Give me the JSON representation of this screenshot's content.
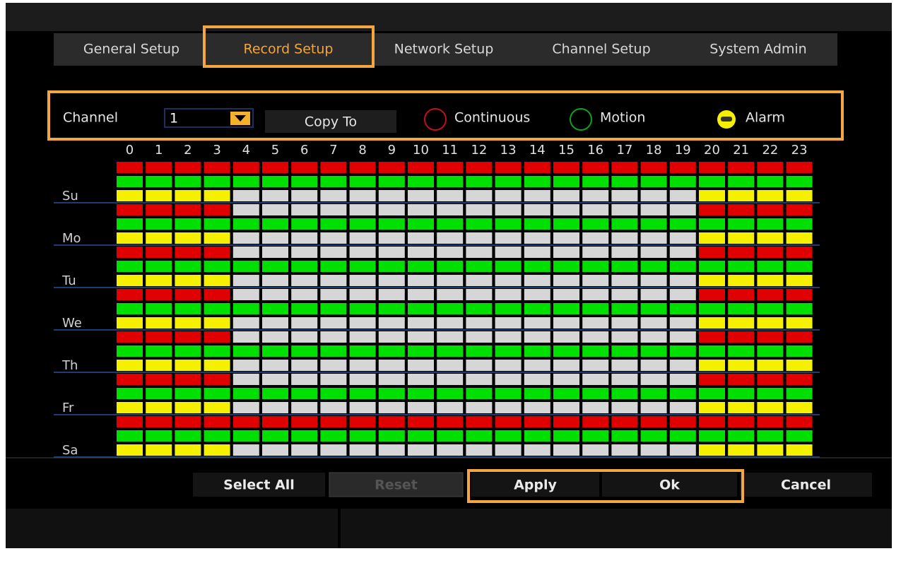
{
  "tabs": [
    "General Setup",
    "Record Setup",
    "Network Setup",
    "Channel Setup",
    "System Admin"
  ],
  "active_tab": 1,
  "channel": {
    "label": "Channel",
    "value": "1"
  },
  "copy_to": "Copy To",
  "legend": [
    {
      "label": "Continuous",
      "color": "#e00000"
    },
    {
      "label": "Motion",
      "color": "#00e000"
    },
    {
      "label": "Alarm",
      "color": "#f4f000"
    }
  ],
  "hours": [
    0,
    1,
    2,
    3,
    4,
    5,
    6,
    7,
    8,
    9,
    10,
    11,
    12,
    13,
    14,
    15,
    16,
    17,
    18,
    19,
    20,
    21,
    22,
    23
  ],
  "days": [
    {
      "label": "Su",
      "rows": [
        "111111111111111111111111",
        "111111111111111111111111",
        "111100000000000000001111"
      ]
    },
    {
      "label": "Mo",
      "rows": [
        "111100000000000000001111",
        "111111111111111111111111",
        "111100000000000000001111"
      ]
    },
    {
      "label": "Tu",
      "rows": [
        "111100000000000000001111",
        "111111111111111111111111",
        "111100000000000000001111"
      ]
    },
    {
      "label": "We",
      "rows": [
        "111100000000000000001111",
        "111111111111111111111111",
        "111100000000000000001111"
      ]
    },
    {
      "label": "Th",
      "rows": [
        "111100000000000000001111",
        "111111111111111111111111",
        "111100000000000000001111"
      ]
    },
    {
      "label": "Fr",
      "rows": [
        "111100000000000000001111",
        "111111111111111111111111",
        "111100000000000000001111"
      ]
    },
    {
      "label": "Sa",
      "rows": [
        "111111111111111111111111",
        "111111111111111111111111",
        "111100000000000000001111"
      ]
    }
  ],
  "buttons": [
    "Select All",
    "Reset",
    "Apply",
    "Ok",
    "Cancel"
  ]
}
